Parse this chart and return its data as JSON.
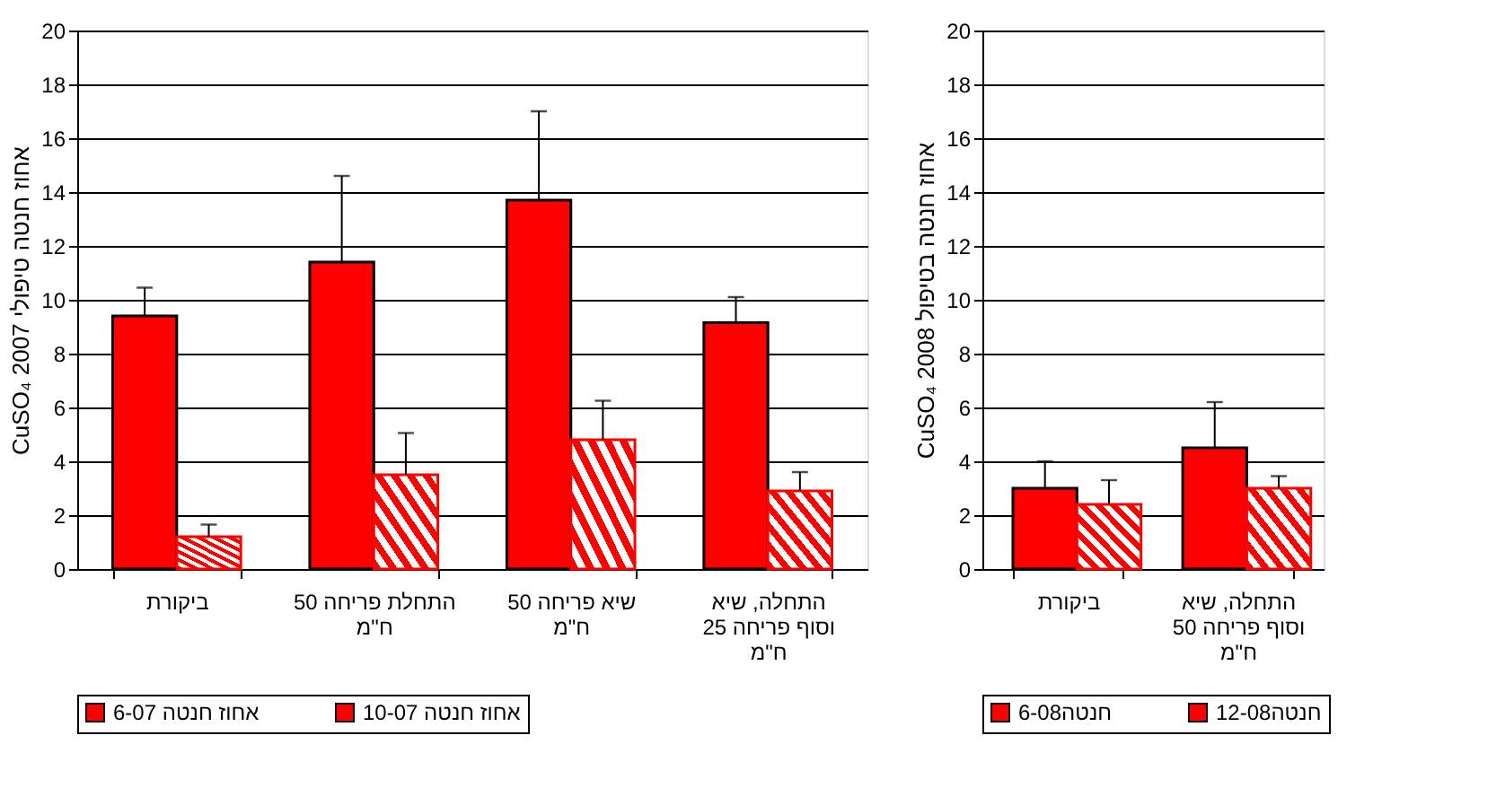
{
  "chart_data": [
    {
      "type": "bar",
      "ylabel": "CuSO₄ 2007 אחוז חנטה טיפולי",
      "categories": [
        "ביקורת",
        "התחלת פריחה 50 ח\"מ",
        "שיא פריחה 50 ח\"מ",
        "התחלה, שיא וסוף פריחה 25 ח\"מ"
      ],
      "series": [
        {
          "name": "אחוז חנטה 6-07",
          "color": "#ff0000",
          "values": [
            9.4,
            11.4,
            13.7,
            9.15
          ],
          "errors": [
            [
              9.4,
              10.45
            ],
            [
              11.4,
              14.6
            ],
            [
              13.7,
              17.0
            ],
            [
              9.15,
              10.1
            ]
          ]
        },
        {
          "name": "אחוז חנטה 10-07",
          "color": "#ff0000",
          "values": [
            1.2,
            3.5,
            4.8,
            2.9
          ],
          "errors": [
            [
              1.2,
              1.65
            ],
            [
              3.5,
              5.05
            ],
            [
              4.8,
              6.25
            ],
            [
              2.9,
              3.6
            ]
          ]
        }
      ],
      "ylim": [
        0,
        20
      ],
      "yticks": [
        0,
        2,
        4,
        6,
        8,
        10,
        12,
        14,
        16,
        18,
        20
      ],
      "grid": "y",
      "legend": "bottom"
    },
    {
      "type": "bar",
      "ylabel": "CuSO₄ 2008 אחוז חנטה בטיפול",
      "categories": [
        "ביקורת",
        "התחלה, שיא וסוף פריחה 50 ח\"מ"
      ],
      "series": [
        {
          "name": "חנטה6-08",
          "color": "#ff0000",
          "values": [
            3.0,
            4.5
          ],
          "errors": [
            [
              3.0,
              4.0
            ],
            [
              4.5,
              6.2
            ]
          ]
        },
        {
          "name": "חנטה12-08",
          "color": "#ff0000",
          "values": [
            2.4,
            3.0
          ],
          "errors": [
            [
              2.4,
              3.3
            ],
            [
              3.0,
              3.45
            ]
          ]
        }
      ],
      "ylim": [
        0,
        20
      ],
      "yticks": [
        0,
        2,
        4,
        6,
        8,
        10,
        12,
        14,
        16,
        18,
        20
      ],
      "grid": "y",
      "legend": "bottom"
    }
  ]
}
